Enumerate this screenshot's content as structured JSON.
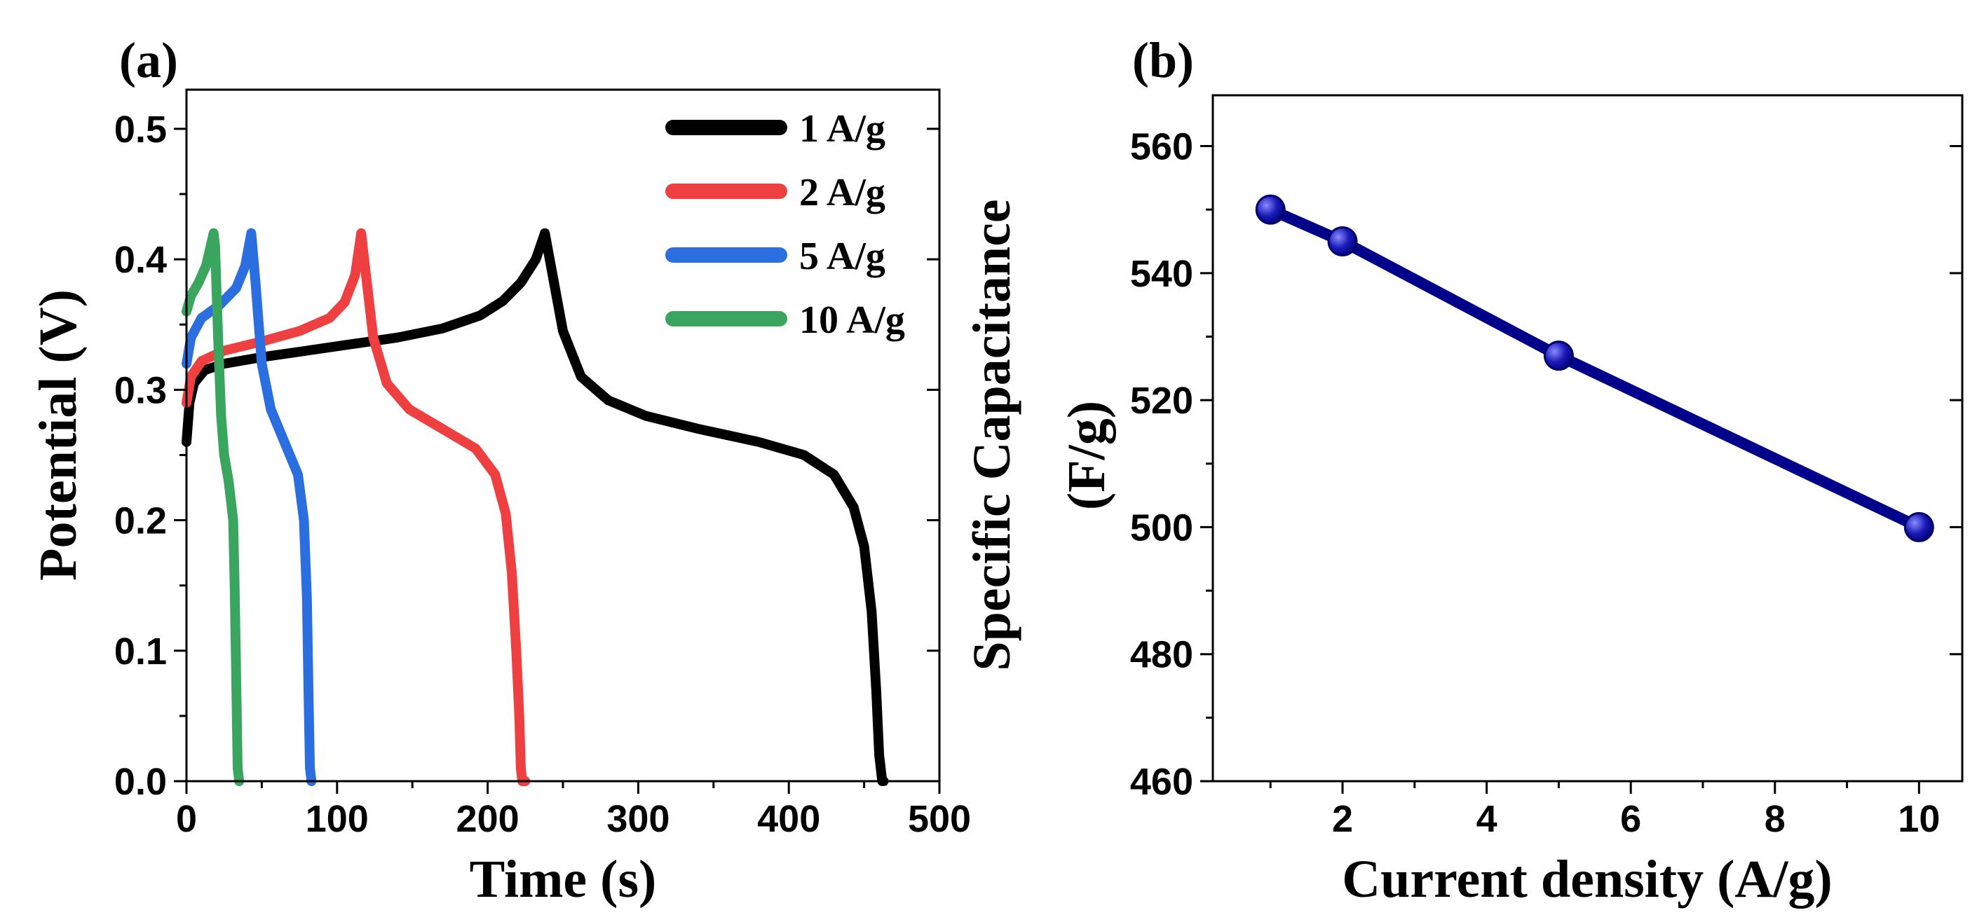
{
  "chart_data": [
    {
      "panel_label": "(a)",
      "type": "line",
      "title": "",
      "xlabel": "Time (s)",
      "ylabel": "Potential (V)",
      "xlim": [
        0,
        500
      ],
      "ylim": [
        0,
        0.53
      ],
      "xticks": [
        0,
        100,
        200,
        300,
        400,
        500
      ],
      "yticks": [
        0.0,
        0.1,
        0.2,
        0.3,
        0.4,
        0.5
      ],
      "xtick_labels": [
        "0",
        "100",
        "200",
        "300",
        "400",
        "500"
      ],
      "ytick_labels": [
        "0.0",
        "0.1",
        "0.2",
        "0.3",
        "0.4",
        "0.5"
      ],
      "legend_position": "top-right",
      "series": [
        {
          "name": "1 A/g",
          "color": "#000000",
          "x": [
            0,
            2,
            5,
            12,
            25,
            50,
            80,
            110,
            140,
            170,
            195,
            210,
            222,
            232,
            238,
            242,
            250,
            262,
            280,
            305,
            340,
            380,
            410,
            430,
            443,
            450,
            455,
            458,
            460,
            462,
            463
          ],
          "y": [
            0.26,
            0.29,
            0.305,
            0.315,
            0.32,
            0.325,
            0.33,
            0.335,
            0.34,
            0.347,
            0.357,
            0.368,
            0.382,
            0.4,
            0.42,
            0.395,
            0.345,
            0.31,
            0.292,
            0.28,
            0.27,
            0.26,
            0.25,
            0.235,
            0.21,
            0.18,
            0.13,
            0.07,
            0.02,
            0.0,
            0.0
          ]
        },
        {
          "name": "2 A/g",
          "color": "#ee4040",
          "x": [
            0,
            3,
            10,
            25,
            50,
            75,
            95,
            105,
            112,
            116,
            119,
            124,
            133,
            148,
            170,
            192,
            205,
            212,
            216,
            219,
            221,
            222,
            223,
            225
          ],
          "y": [
            0.29,
            0.31,
            0.322,
            0.33,
            0.337,
            0.345,
            0.355,
            0.367,
            0.388,
            0.42,
            0.39,
            0.34,
            0.305,
            0.285,
            0.27,
            0.255,
            0.235,
            0.205,
            0.16,
            0.1,
            0.05,
            0.01,
            0.0,
            0.0
          ]
        },
        {
          "name": "5 A/g",
          "color": "#2b6ee0",
          "x": [
            0,
            3,
            10,
            22,
            33,
            39,
            43,
            46,
            50,
            56,
            65,
            74,
            78,
            80,
            81,
            82,
            83
          ],
          "y": [
            0.32,
            0.34,
            0.355,
            0.365,
            0.378,
            0.395,
            0.42,
            0.38,
            0.32,
            0.285,
            0.26,
            0.235,
            0.2,
            0.14,
            0.07,
            0.01,
            0.0
          ]
        },
        {
          "name": "10 A/g",
          "color": "#3aa55f",
          "x": [
            0,
            3,
            8,
            13,
            16,
            18,
            19,
            21,
            23,
            25,
            28,
            31,
            32,
            33,
            34,
            35
          ],
          "y": [
            0.36,
            0.372,
            0.382,
            0.395,
            0.41,
            0.42,
            0.41,
            0.34,
            0.28,
            0.25,
            0.23,
            0.2,
            0.15,
            0.08,
            0.01,
            0.0
          ]
        }
      ]
    },
    {
      "panel_label": "(b)",
      "type": "line",
      "title": "",
      "xlabel": "Current density (A/g)",
      "ylabel": "Specific Capacitance (F/g)",
      "ylabel_lines": [
        "Specific Capacitance",
        "(F/g)"
      ],
      "xlim": [
        0.2,
        10.6
      ],
      "ylim": [
        460,
        568
      ],
      "xticks": [
        2,
        4,
        6,
        8,
        10
      ],
      "yticks": [
        460,
        480,
        500,
        520,
        540,
        560
      ],
      "xtick_labels": [
        "2",
        "4",
        "6",
        "8",
        "10"
      ],
      "ytick_labels": [
        "460",
        "480",
        "500",
        "520",
        "540",
        "560"
      ],
      "series": [
        {
          "name": "Specific Capacitance",
          "color": "#00008b",
          "marker": "circle",
          "x": [
            1,
            2,
            5,
            10
          ],
          "y": [
            550,
            545,
            527,
            500
          ]
        }
      ]
    }
  ]
}
